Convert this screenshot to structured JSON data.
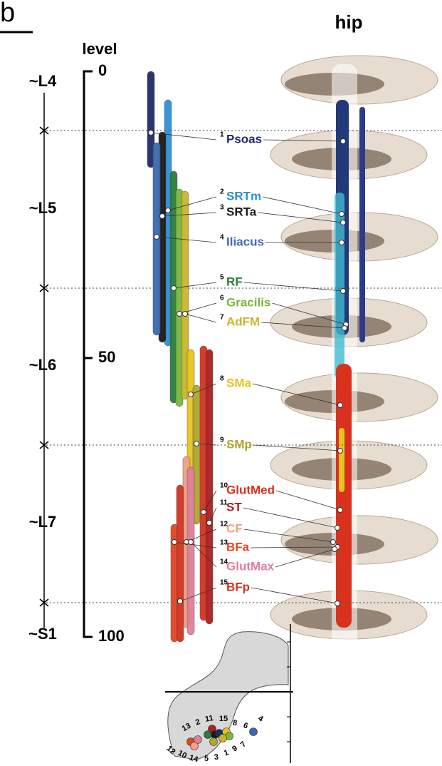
{
  "panel_label": "b",
  "title": "hip",
  "level_axis": {
    "label": "level",
    "ticks": [
      0,
      50,
      100
    ]
  },
  "segments": [
    "~L4",
    "~L5",
    "~L6",
    "~L7",
    "~S1"
  ],
  "muscles": [
    {
      "number": 1,
      "name": "Psoas",
      "color": "#1f2a66"
    },
    {
      "number": 2,
      "name": "SRTm",
      "color": "#2c8fd6"
    },
    {
      "number": 3,
      "name": "SRTa",
      "color": "#1a1a1a"
    },
    {
      "number": 4,
      "name": "Iliacus",
      "color": "#3b69b0"
    },
    {
      "number": 5,
      "name": "RF",
      "color": "#2b7d3c"
    },
    {
      "number": 6,
      "name": "Gracilis",
      "color": "#79b83a"
    },
    {
      "number": 7,
      "name": "AdFM",
      "color": "#c9b62e"
    },
    {
      "number": 8,
      "name": "SMa",
      "color": "#e6c51e"
    },
    {
      "number": 9,
      "name": "SMp",
      "color": "#b3a52e"
    },
    {
      "number": 10,
      "name": "GlutMed",
      "color": "#d8321f"
    },
    {
      "number": 11,
      "name": "ST",
      "color": "#a82020"
    },
    {
      "number": 12,
      "name": "CF",
      "color": "#f2a07e"
    },
    {
      "number": 13,
      "name": "BFa",
      "color": "#e2441f"
    },
    {
      "number": 14,
      "name": "GlutMax",
      "color": "#e0809c"
    },
    {
      "number": 15,
      "name": "BFp",
      "color": "#d33220"
    }
  ],
  "inset": {
    "top_numbers": [
      13,
      2,
      11,
      15,
      8,
      6,
      4
    ],
    "bottom_numbers": [
      12,
      10,
      14,
      5,
      3,
      1,
      9,
      7
    ]
  }
}
